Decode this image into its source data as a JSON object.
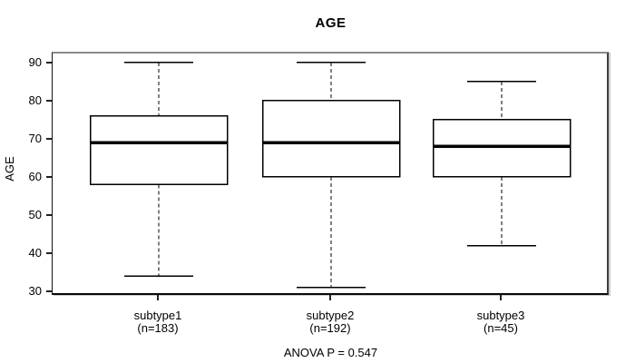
{
  "chart_data": {
    "type": "boxplot",
    "title": "AGE",
    "ylabel": "AGE",
    "annotation": "ANOVA P = 0.547",
    "yticks": [
      30,
      40,
      50,
      60,
      70,
      80,
      90
    ],
    "ylim": [
      29.52,
      92.38
    ],
    "grid": false,
    "legend": null,
    "groups": [
      {
        "label": "subtype1",
        "sublabel": "(n=183)",
        "n": 183,
        "whisker_low": 34,
        "q1": 58,
        "median": 69,
        "q3": 76,
        "whisker_high": 90,
        "outliers": []
      },
      {
        "label": "subtype2",
        "sublabel": "(n=192)",
        "n": 192,
        "whisker_low": 31,
        "q1": 60,
        "median": 69,
        "q3": 80,
        "whisker_high": 90,
        "outliers": []
      },
      {
        "label": "subtype3",
        "sublabel": "(n=45)",
        "n": 45,
        "whisker_low": 42,
        "q1": 60,
        "median": 68,
        "q3": 75,
        "whisker_high": 85,
        "outliers": []
      }
    ]
  },
  "colors": {
    "background": "#ffffff",
    "box_stroke": "#000000",
    "box_fill": "#ffffff",
    "median": "#000000",
    "whisker": "#000000",
    "text": "#000000",
    "frame_top": "#8a8a8a"
  }
}
